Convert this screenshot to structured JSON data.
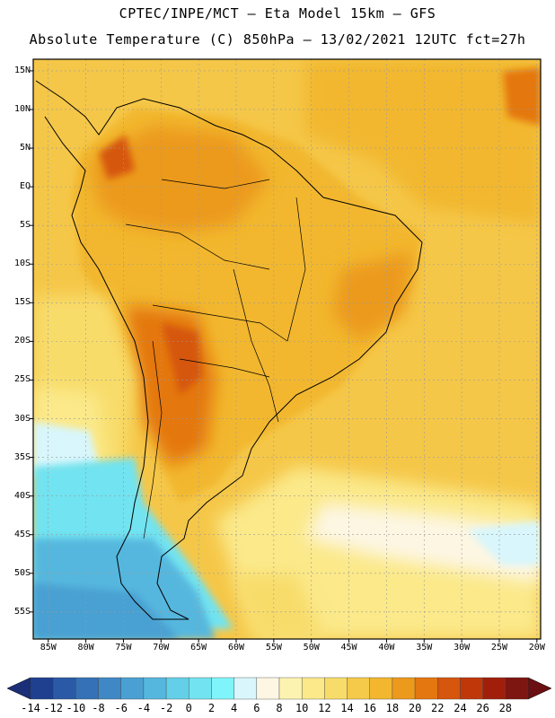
{
  "header": {
    "line1": "CPTEC/INPE/MCT —  Eta Model 15km — GFS",
    "line2": "Absolute Temperature (C) 850hPa — 13/02/2021 12UTC fct=27h"
  },
  "axes": {
    "lat_labels": [
      "15N",
      "10N",
      "5N",
      "EQ",
      "5S",
      "10S",
      "15S",
      "20S",
      "25S",
      "30S",
      "35S",
      "40S",
      "45S",
      "50S",
      "55S"
    ],
    "lon_labels": [
      "85W",
      "80W",
      "75W",
      "70W",
      "65W",
      "60W",
      "55W",
      "50W",
      "45W",
      "40W",
      "35W",
      "30W",
      "25W",
      "20W"
    ]
  },
  "colorbar": {
    "labels": [
      "-14",
      "-12",
      "-10",
      "-8",
      "-6",
      "-4",
      "-2",
      "0",
      "2",
      "4",
      "6",
      "8",
      "10",
      "12",
      "14",
      "16",
      "18",
      "20",
      "22",
      "24",
      "26",
      "28"
    ],
    "colors": [
      "#1f3f8f",
      "#2a5aa5",
      "#3471b7",
      "#3f88c5",
      "#4aa0d2",
      "#56b7de",
      "#63cfe8",
      "#72e3f0",
      "#7ff5fb",
      "#d8f6fb",
      "#fdf6e3",
      "#fdf3b0",
      "#fbe98a",
      "#f8dc6a",
      "#f5ca4a",
      "#f2b72e",
      "#ec9a1c",
      "#e47710",
      "#d5560c",
      "#c0380a",
      "#a11f0a",
      "#7d1510"
    ],
    "under_color": "#1a2f78",
    "over_color": "#6a0f12"
  }
}
